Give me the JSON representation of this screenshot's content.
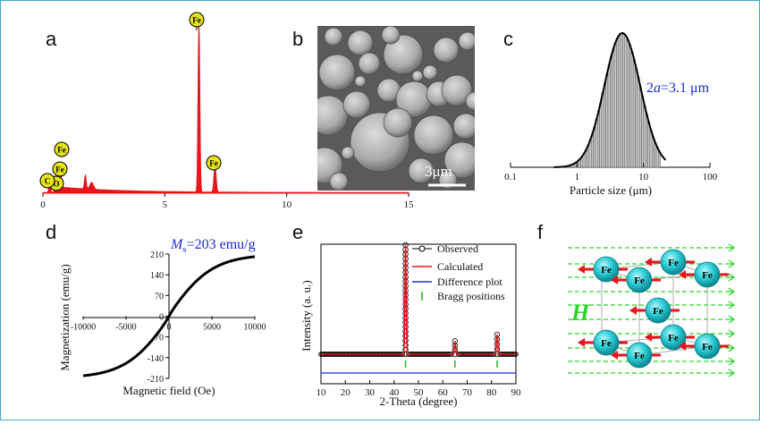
{
  "panels": {
    "a": {
      "label": "a"
    },
    "b": {
      "label": "b"
    },
    "c": {
      "label": "c"
    },
    "d": {
      "label": "d"
    },
    "e": {
      "label": "e"
    },
    "f": {
      "label": "f"
    }
  },
  "edx_markers": [
    "Fe",
    "Fe",
    "Fe",
    "O",
    "C",
    "Fe"
  ],
  "sem": {
    "scale_label": "3μm"
  },
  "panel_c": {
    "annotation_prefix": "2",
    "annotation_var": "a",
    "annotation_suffix": "=3.1 μm"
  },
  "panel_d": {
    "annotation_var": "M",
    "annotation_sub": "s",
    "annotation_suffix": "=203 emu/g"
  },
  "panel_f": {
    "field_label": "H",
    "atom_label": "Fe"
  },
  "chart_data": [
    {
      "type": "line",
      "panel": "a",
      "title": "",
      "xlabel": "",
      "ylabel": "",
      "xlim": [
        0,
        15
      ],
      "xticks": [
        "0",
        "5",
        "10",
        "15"
      ],
      "series": [
        {
          "x": [
            0.28,
            0.52,
            0.71,
            1.74,
            2.0,
            6.4,
            7.06
          ],
          "values": [
            0.05,
            0.04,
            0.12,
            0.08,
            0.04,
            1.0,
            0.16
          ]
        }
      ]
    },
    {
      "type": "bar",
      "panel": "c",
      "title": "",
      "xlabel": "Particle size (μm)",
      "ylabel": "",
      "xscale": "log",
      "xlim": [
        0.1,
        100
      ],
      "xticks": [
        "0.1",
        "1",
        "10",
        "100"
      ],
      "mean_um": 3.1
    },
    {
      "type": "line",
      "panel": "d",
      "title": "",
      "xlabel": "Magnetic field (Oe)",
      "ylabel": "Magnetization (emu/g)",
      "xlim": [
        -10000,
        10000
      ],
      "ylim": [
        -210,
        210
      ],
      "xticks": [
        "-10000",
        "-5000",
        "0",
        "5000",
        "10000"
      ],
      "yticks": [
        "210",
        "140",
        "70",
        "0",
        "-70",
        "-140",
        "-210"
      ],
      "series": [
        {
          "x": [
            -10000,
            -7500,
            -5000,
            -2500,
            0,
            2500,
            5000,
            7500,
            10000
          ],
          "values": [
            -203,
            -189,
            -159,
            -103,
            0,
            103,
            159,
            189,
            203
          ]
        }
      ]
    },
    {
      "type": "line",
      "panel": "e",
      "title": "",
      "xlabel": "2-Theta (degree)",
      "ylabel": "Intensity (a. u.)",
      "xlim": [
        10,
        90
      ],
      "xticks": [
        "10",
        "20",
        "30",
        "40",
        "50",
        "60",
        "70",
        "80",
        "90"
      ],
      "legend": [
        "Observed",
        "Calculated",
        "Difference plot",
        "Bragg positions"
      ],
      "legend_position": "top-right",
      "series": [
        {
          "name": "Observed",
          "x": [
            44.7,
            65.0,
            82.3
          ],
          "values": [
            100,
            12,
            18
          ]
        }
      ],
      "bragg_positions": [
        44.7,
        65.0,
        82.3
      ]
    }
  ]
}
